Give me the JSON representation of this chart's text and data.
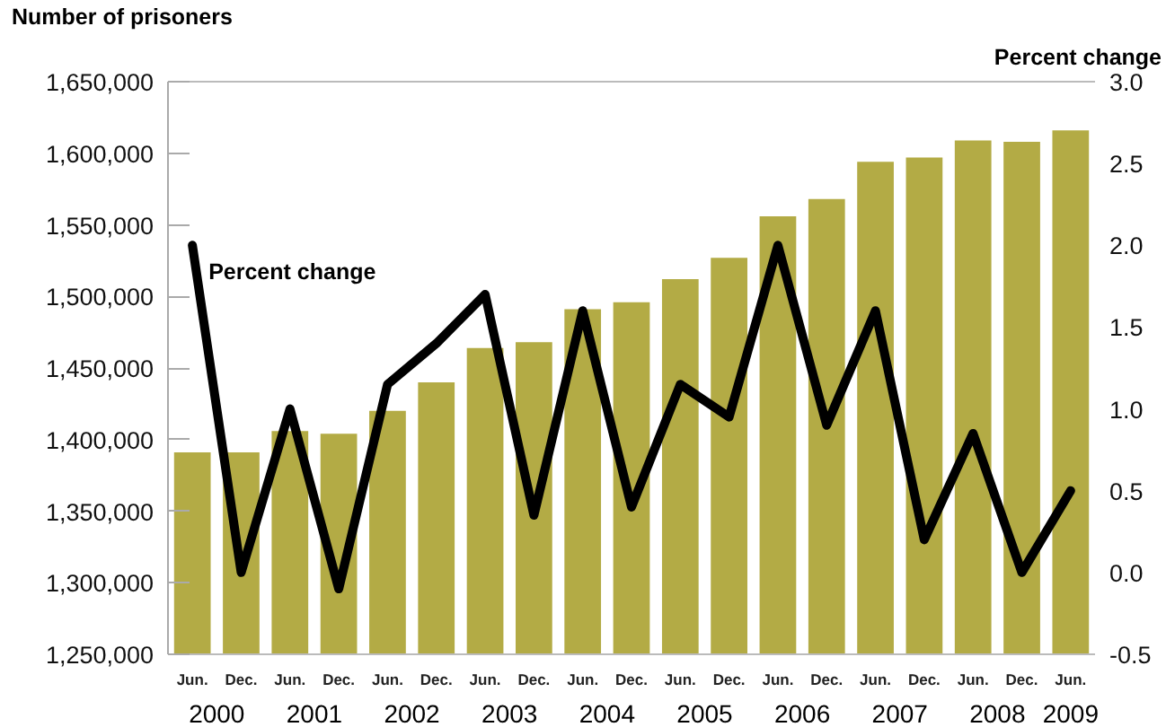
{
  "chart_data": {
    "type": "bar",
    "ylabel": "Number of prisoners",
    "y2label": "Percent change",
    "categories": [
      "Jun.",
      "Dec.",
      "Jun.",
      "Dec.",
      "Jun.",
      "Dec.",
      "Jun.",
      "Dec.",
      "Jun.",
      "Dec.",
      "Jun.",
      "Dec.",
      "Jun.",
      "Dec.",
      "Jun.",
      "Dec.",
      "Jun.",
      "Dec.",
      "Jun."
    ],
    "annotations": [
      "2000",
      "2001",
      "2002",
      "2003",
      "2004",
      "2005",
      "2006",
      "2007",
      "2008",
      "2009"
    ],
    "series": [
      {
        "color": "#b3ab45",
        "values": [
          1391000,
          1391000,
          1406000,
          1404000,
          1420000,
          1440000,
          1464000,
          1468000,
          1491000,
          1496000,
          1512000,
          1527000,
          1556000,
          1568000,
          1594000,
          1597000,
          1609000,
          1608000,
          1616000
        ]
      },
      {
        "type": "line",
        "name": "Percent change",
        "axis": "y2",
        "color": "#000000",
        "values": [
          2.0,
          0.0,
          1.0,
          -0.1,
          1.15,
          1.4,
          1.7,
          0.35,
          1.6,
          0.4,
          1.15,
          0.95,
          2.0,
          0.9,
          1.6,
          0.2,
          0.85,
          0.0,
          0.5
        ]
      }
    ],
    "ylim": [
      1250000,
      1650000
    ],
    "yticks": [
      {
        "value": 1250000,
        "label": "1,250,000"
      },
      {
        "value": 1300000,
        "label": "1,300,000"
      },
      {
        "value": 1350000,
        "label": "1,350,000"
      },
      {
        "value": 1400000,
        "label": "1,400,000"
      },
      {
        "value": 1450000,
        "label": "1,450,000"
      },
      {
        "value": 1500000,
        "label": "1,500,000"
      },
      {
        "value": 1550000,
        "label": "1,550,000"
      },
      {
        "value": 1600000,
        "label": "1,600,000"
      },
      {
        "value": 1650000,
        "label": "1,650,000"
      }
    ],
    "y2lim": [
      -0.5,
      3.0
    ],
    "y2ticks": [
      {
        "value": -0.5,
        "label": "-0.5"
      },
      {
        "value": 0,
        "label": "0.0"
      },
      {
        "value": 0.5,
        "label": "0.5"
      },
      {
        "value": 1,
        "label": "1.0"
      },
      {
        "value": 1.5,
        "label": "1.5"
      },
      {
        "value": 2,
        "label": "2.0"
      },
      {
        "value": 2.5,
        "label": "2.5"
      },
      {
        "value": 3,
        "label": "3.0"
      }
    ],
    "grid": false,
    "line_style": "solid"
  }
}
